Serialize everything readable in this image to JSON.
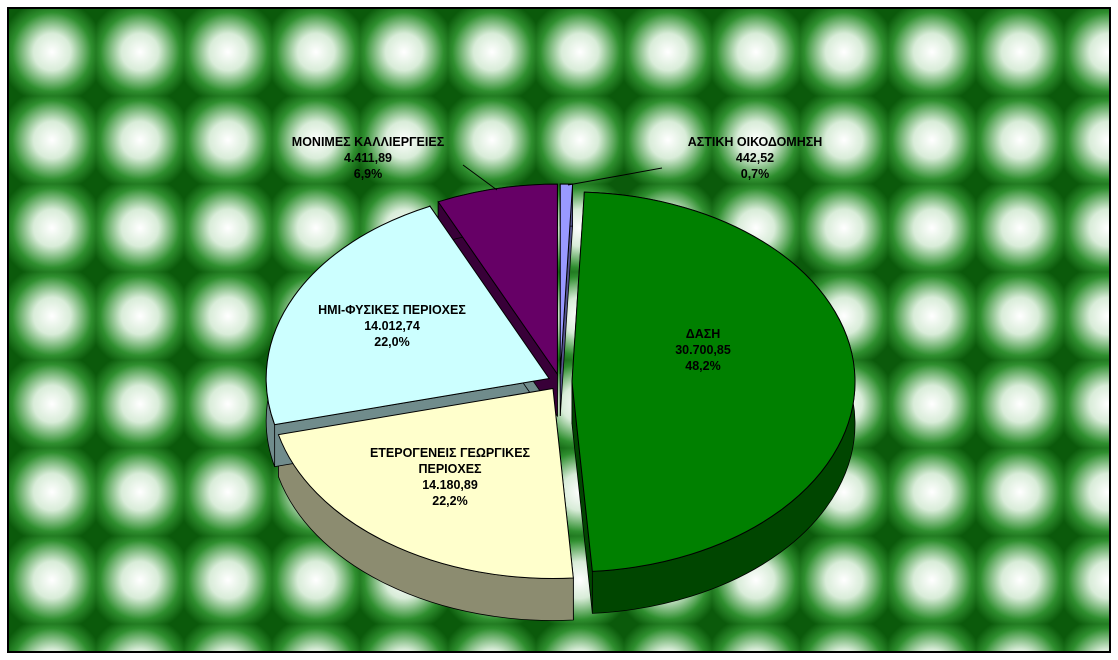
{
  "chart_data": {
    "type": "pie",
    "categories": [
      "ΑΣΤΙΚΗ ΟΙΚΟΔΟΜΗΣΗ",
      "ΔΑΣΗ",
      "ΕΤΕΡΟΓΕΝΕΙΣ ΓΕΩΡΓΙΚΕΣ ΠΕΡΙΟΧΕΣ",
      "ΗΜΙ-ΦΥΣΙΚΕΣ ΠΕΡΙΟΧΕΣ",
      "ΜΟΝΙΜΕΣ ΚΑΛΛΙΕΡΓΕΙΕΣ"
    ],
    "values": [
      442.52,
      30700.85,
      14180.89,
      14012.74,
      4411.89
    ],
    "value_labels": [
      "442,52",
      "30.700,85",
      "14.180,89",
      "14.012,74",
      "4.411,89"
    ],
    "percentages": [
      0.7,
      48.2,
      22.2,
      22.0,
      6.9
    ],
    "percentage_labels": [
      "0,7%",
      "48,2%",
      "22,2%",
      "22,0%",
      "6,9%"
    ],
    "colors": [
      "#9999ff",
      "#008000",
      "#ffffcc",
      "#ccffff",
      "#660066"
    ]
  }
}
